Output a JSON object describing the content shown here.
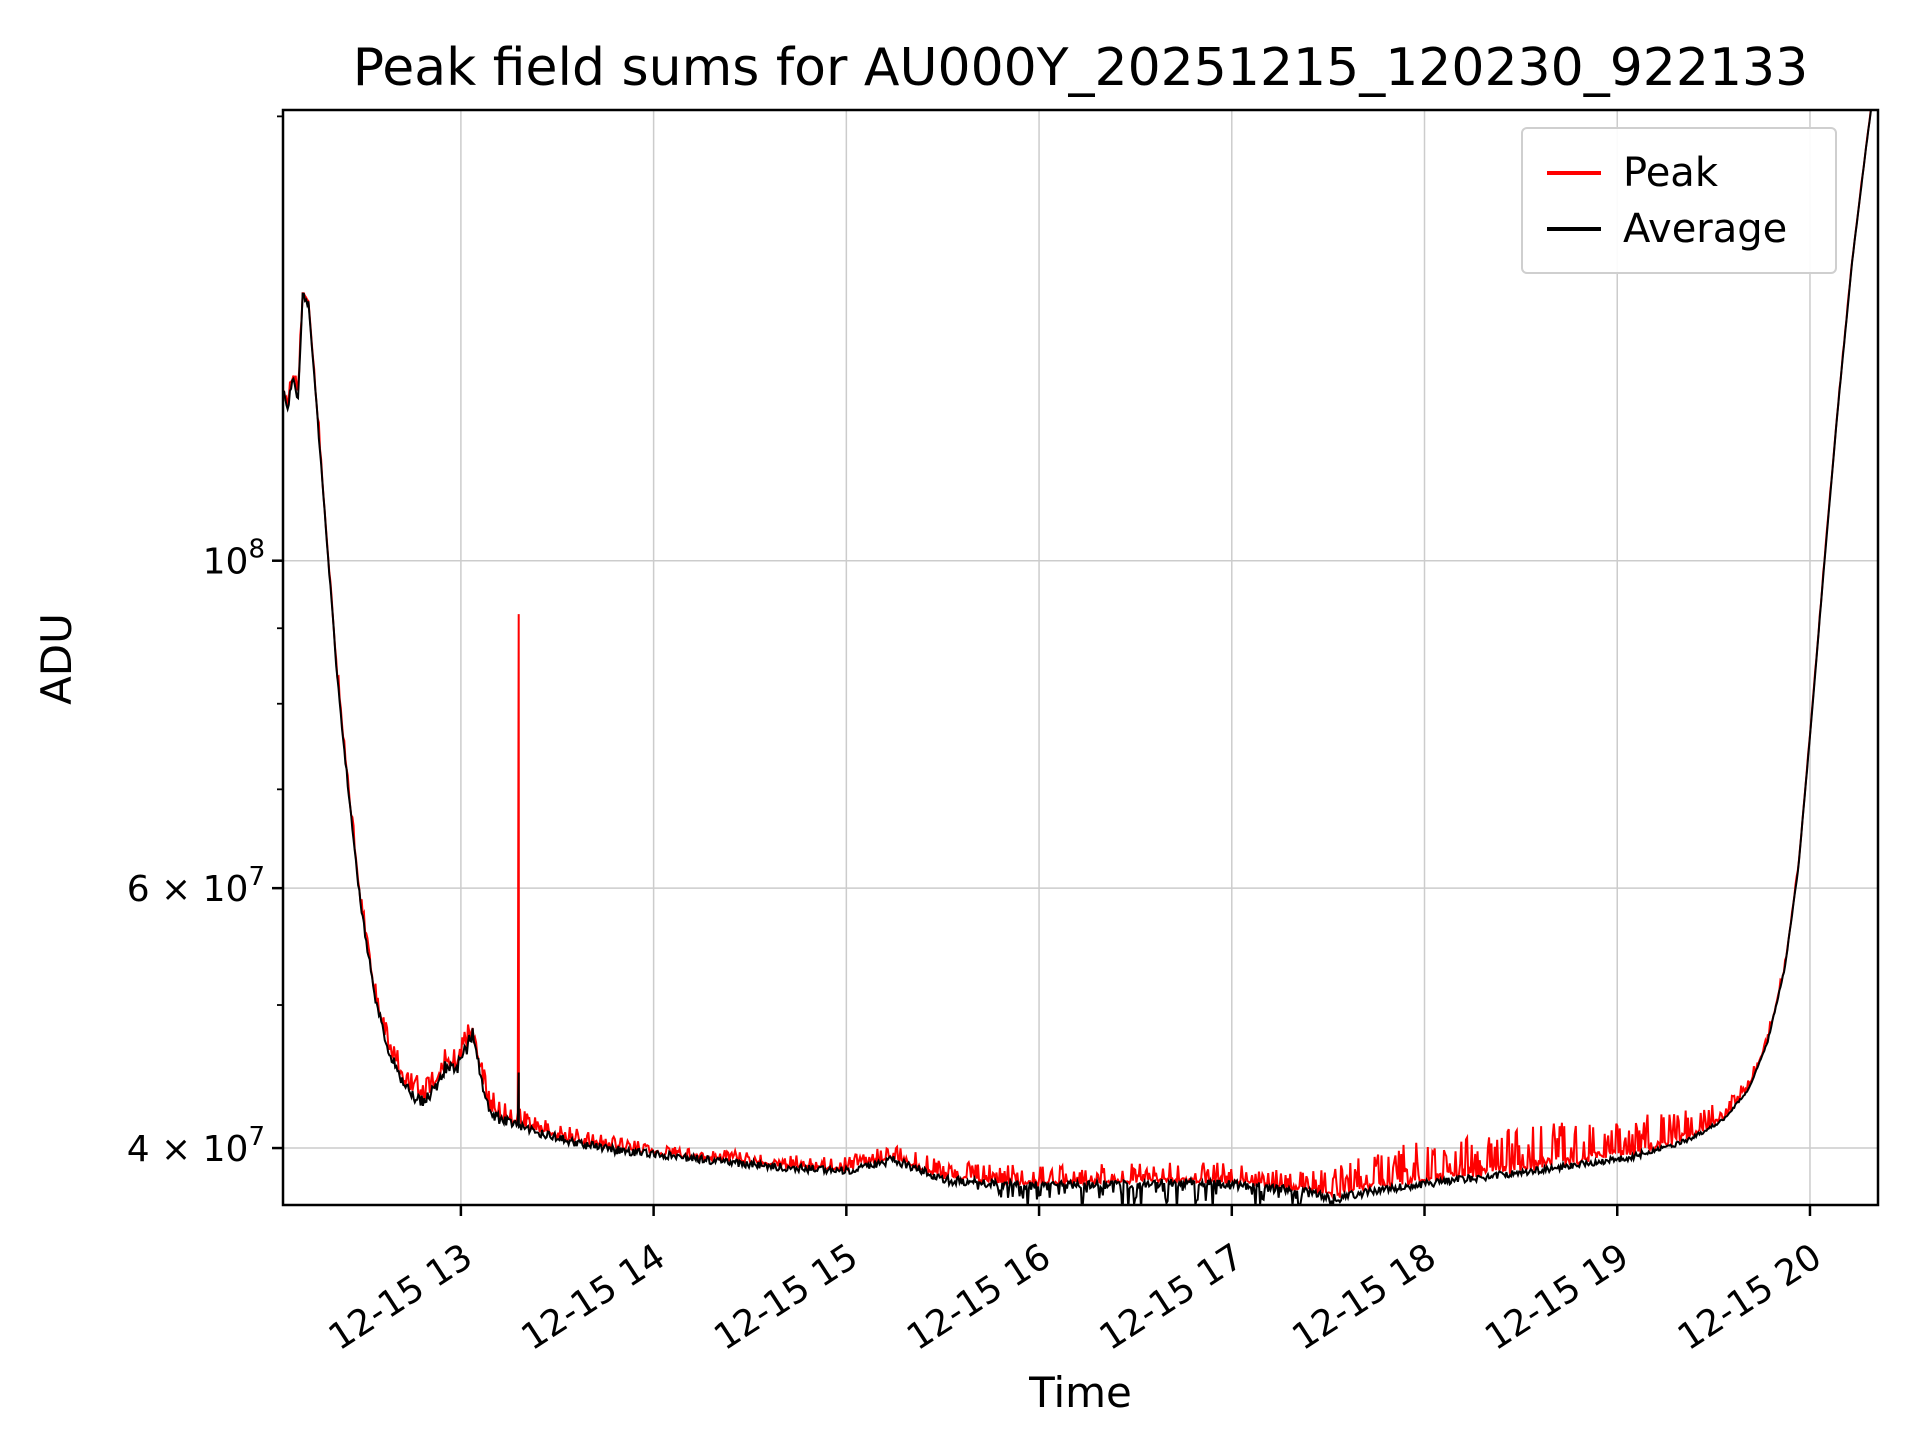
{
  "chart_data": {
    "type": "line",
    "title": "Peak field sums for AU000Y_20251215_120230_922133",
    "xlabel": "Time",
    "ylabel": "ADU",
    "yscale": "log",
    "grid": true,
    "legend_position": "upper right",
    "x_domain_hours": [
      12.077,
      20.353
    ],
    "ylim": [
      36600000.0,
      202000000.0
    ],
    "x_ticks": [
      {
        "hour": 13,
        "label": "12-15 13"
      },
      {
        "hour": 14,
        "label": "12-15 14"
      },
      {
        "hour": 15,
        "label": "12-15 15"
      },
      {
        "hour": 16,
        "label": "12-15 16"
      },
      {
        "hour": 17,
        "label": "12-15 17"
      },
      {
        "hour": 18,
        "label": "12-15 18"
      },
      {
        "hour": 19,
        "label": "12-15 19"
      },
      {
        "hour": 20,
        "label": "12-15 20"
      }
    ],
    "y_ticks": [
      {
        "value": 40000000.0,
        "mantissa": "4 × 10",
        "exp": "7"
      },
      {
        "value": 60000000.0,
        "mantissa": "6 × 10",
        "exp": "7"
      },
      {
        "value": 100000000.0,
        "mantissa": "10",
        "exp": "8"
      }
    ],
    "y_minor_ticks": [
      50000000.0,
      70000000.0,
      80000000.0,
      90000000.0,
      200000000.0
    ],
    "colors": {
      "grid": "#cccccc",
      "spine": "#000000",
      "background": "#ffffff"
    },
    "series": [
      {
        "name": "Peak",
        "color": "#ff0000"
      },
      {
        "name": "Average",
        "color": "#000000"
      }
    ],
    "avg_keypoints": [
      [
        12.077,
        130000000.0
      ],
      [
        12.1,
        127000000.0
      ],
      [
        12.13,
        133000000.0
      ],
      [
        12.155,
        129000000.0
      ],
      [
        12.18,
        152000000.0
      ],
      [
        12.21,
        149000000.0
      ],
      [
        12.24,
        133000000.0
      ],
      [
        12.3,
        105000000.0
      ],
      [
        12.36,
        83000000.0
      ],
      [
        12.42,
        69000000.0
      ],
      [
        12.48,
        58500000.0
      ],
      [
        12.55,
        51000000.0
      ],
      [
        12.62,
        46800000.0
      ],
      [
        12.7,
        44200000.0
      ],
      [
        12.76,
        43200000.0
      ],
      [
        12.82,
        43000000.0
      ],
      [
        12.88,
        44400000.0
      ],
      [
        12.93,
        45600000.0
      ],
      [
        12.97,
        45000000.0
      ],
      [
        13.02,
        46400000.0
      ],
      [
        13.06,
        47800000.0
      ],
      [
        13.1,
        45000000.0
      ],
      [
        13.14,
        42600000.0
      ],
      [
        13.2,
        41800000.0
      ],
      [
        13.28,
        41500000.0
      ],
      [
        13.4,
        41000000.0
      ],
      [
        13.6,
        40300000.0
      ],
      [
        13.85,
        39800000.0
      ],
      [
        14.1,
        39500000.0
      ],
      [
        14.4,
        39100000.0
      ],
      [
        14.7,
        38800000.0
      ],
      [
        15.0,
        38600000.0
      ],
      [
        15.15,
        39000000.0
      ],
      [
        15.25,
        39300000.0
      ],
      [
        15.35,
        38800000.0
      ],
      [
        15.5,
        38100000.0
      ],
      [
        15.7,
        37900000.0
      ],
      [
        16.0,
        37700000.0
      ],
      [
        16.4,
        37800000.0
      ],
      [
        16.8,
        37900000.0
      ],
      [
        17.1,
        37700000.0
      ],
      [
        17.35,
        37400000.0
      ],
      [
        17.55,
        37000000.0
      ],
      [
        17.7,
        37300000.0
      ],
      [
        17.9,
        37700000.0
      ],
      [
        18.2,
        38100000.0
      ],
      [
        18.5,
        38500000.0
      ],
      [
        18.8,
        39000000.0
      ],
      [
        19.05,
        39400000.0
      ],
      [
        19.25,
        40000000.0
      ],
      [
        19.4,
        40700000.0
      ],
      [
        19.55,
        41800000.0
      ],
      [
        19.68,
        43800000.0
      ],
      [
        19.78,
        47200000.0
      ],
      [
        19.87,
        53000000.0
      ],
      [
        19.94,
        62000000.0
      ],
      [
        20.0,
        76000000.0
      ],
      [
        20.07,
        98000000.0
      ],
      [
        20.14,
        125000000.0
      ],
      [
        20.22,
        160000000.0
      ],
      [
        20.29,
        190000000.0
      ],
      [
        20.353,
        220000000.0
      ]
    ],
    "events": [
      {
        "t": 13.3,
        "peak": 92000000.0,
        "avg": 45000000.0
      }
    ],
    "render_noise": {
      "seed": 11,
      "sample_step_hours": 0.006,
      "jitter": [
        [
          12.077,
          0.01
        ],
        [
          12.25,
          0.004
        ],
        [
          12.75,
          0.01
        ],
        [
          12.95,
          0.013
        ],
        [
          13.1,
          0.01
        ],
        [
          13.35,
          0.007
        ],
        [
          14.5,
          0.006
        ],
        [
          15.5,
          0.007
        ],
        [
          17.5,
          0.007
        ],
        [
          19.2,
          0.005
        ],
        [
          19.6,
          0.002
        ],
        [
          20.353,
          0.001
        ]
      ],
      "peak_up": [
        [
          12.077,
          0.012
        ],
        [
          12.5,
          0.01
        ],
        [
          12.9,
          0.022
        ],
        [
          13.3,
          0.012
        ],
        [
          14.0,
          0.008
        ],
        [
          15.0,
          0.01
        ],
        [
          15.6,
          0.014
        ],
        [
          17.4,
          0.016
        ],
        [
          17.7,
          0.03
        ],
        [
          18.6,
          0.034
        ],
        [
          19.3,
          0.028
        ],
        [
          19.55,
          0.012
        ],
        [
          19.9,
          0.004
        ],
        [
          20.353,
          0.002
        ]
      ],
      "avg_down": [
        [
          12.077,
          0.0
        ],
        [
          15.6,
          0.004
        ],
        [
          15.9,
          0.018
        ],
        [
          16.4,
          0.024
        ],
        [
          17.0,
          0.02
        ],
        [
          17.45,
          0.012
        ],
        [
          17.6,
          0.004
        ],
        [
          20.353,
          0.0
        ]
      ]
    }
  }
}
